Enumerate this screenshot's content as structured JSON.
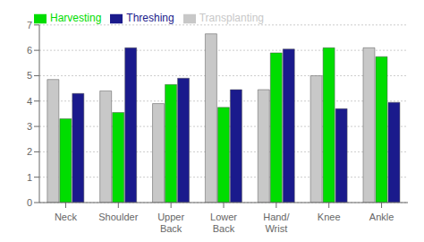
{
  "chart_data": {
    "type": "bar",
    "categories": [
      "Neck",
      "Shoulder",
      "Upper\nBack",
      "Lower\nBack",
      "Hand/\nWrist",
      "Knee",
      "Ankle"
    ],
    "series": [
      {
        "name": "Transplanting",
        "color": "#c8c8c8",
        "values": [
          4.85,
          4.4,
          3.9,
          6.65,
          4.45,
          5.0,
          6.1
        ]
      },
      {
        "name": "Harvesting",
        "color": "#00dd00",
        "values": [
          3.3,
          3.55,
          4.65,
          3.75,
          5.9,
          6.1,
          5.75
        ]
      },
      {
        "name": "Threshing",
        "color": "#1a1a8c",
        "values": [
          4.3,
          6.1,
          4.9,
          4.45,
          6.05,
          3.7,
          3.95
        ]
      }
    ],
    "ylim": [
      0,
      7
    ],
    "yticks": [
      0,
      1,
      2,
      3,
      4,
      5,
      6,
      7
    ],
    "grid": true,
    "legend": "upper left"
  }
}
